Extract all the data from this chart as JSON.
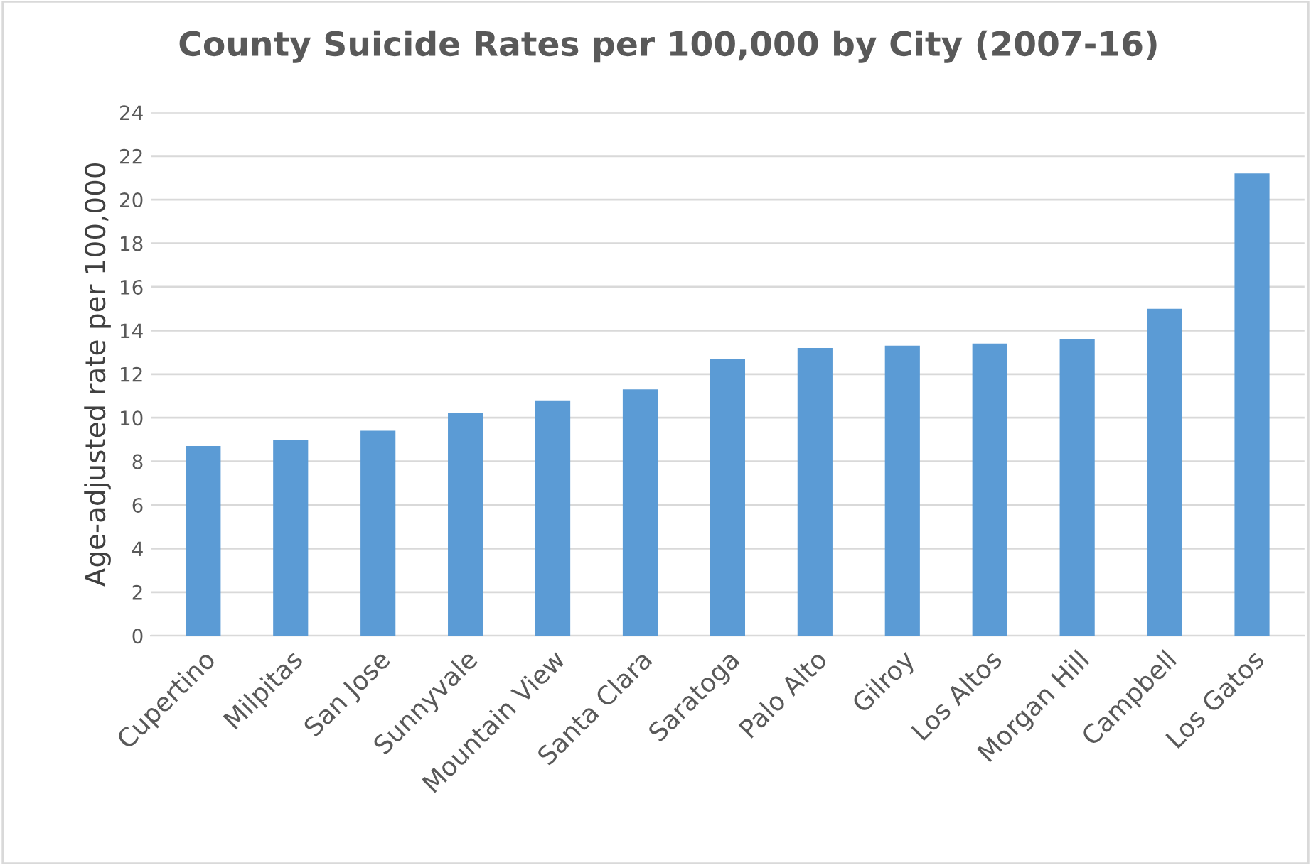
{
  "chart_data": {
    "type": "bar",
    "title": "County Suicide Rates per 100,000 by City (2007-16)",
    "ylabel": "Age-adjusted rate per 100,000",
    "categories": [
      "Cupertino",
      "Milpitas",
      "San Jose",
      "Sunnyvale",
      "Mountain View",
      "Santa Clara",
      "Saratoga",
      "Palo Alto",
      "Gilroy",
      "Los Altos",
      "Morgan Hill",
      "Campbell",
      "Los Gatos"
    ],
    "values": [
      8.7,
      9.0,
      9.4,
      10.2,
      10.8,
      11.3,
      12.7,
      13.2,
      13.3,
      13.4,
      13.6,
      15.0,
      21.2
    ],
    "color": "#5b9bd5",
    "ylim": [
      0,
      24
    ],
    "yticks": [
      0,
      2,
      4,
      6,
      8,
      10,
      12,
      14,
      16,
      18,
      20,
      22,
      24
    ],
    "grid": "y"
  }
}
